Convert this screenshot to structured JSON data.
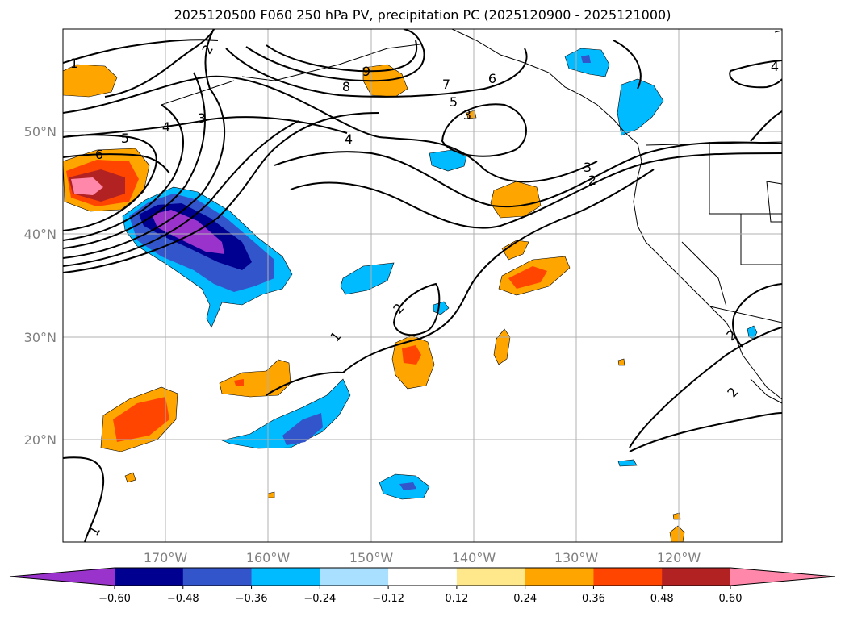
{
  "title": "2025120500 F060 250 hPa PV, precipitation PC (2025120900 - 2025121000)",
  "lat_labels": [
    "50°N",
    "40°N",
    "30°N",
    "20°N"
  ],
  "lon_labels": [
    "170°W",
    "160°W",
    "150°W",
    "140°W",
    "130°W",
    "120°W"
  ],
  "pv_contour_labels": [
    "1",
    "2",
    "9",
    "8",
    "7",
    "6",
    "5",
    "3",
    "4",
    "3",
    "4",
    "5",
    "6",
    "3",
    "2",
    "2",
    "1",
    "2",
    "1",
    "4",
    "2"
  ],
  "colorbar": {
    "ticks": [
      "−0.60",
      "−0.48",
      "−0.36",
      "−0.24",
      "−0.12",
      "0.12",
      "0.24",
      "0.36",
      "0.48",
      "0.60"
    ],
    "colors": [
      "#9933cc",
      "#000090",
      "#3355cc",
      "#00bbff",
      "#aae0ff",
      "#ffffff",
      "#ffe88c",
      "#ffa500",
      "#ff4500",
      "#b22222",
      "#ff88aa"
    ]
  }
}
